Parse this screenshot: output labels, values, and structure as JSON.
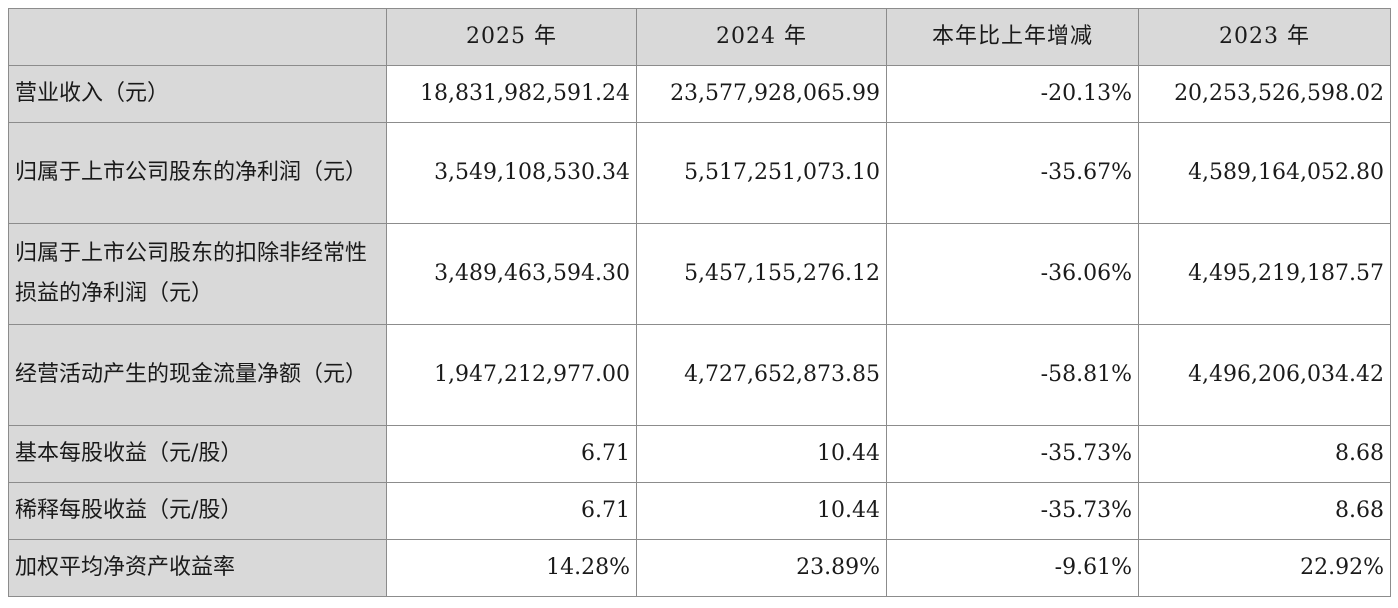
{
  "table": {
    "header": {
      "label": "",
      "columns": [
        "2025 年",
        "2024 年",
        "本年比上年增减",
        "2023 年"
      ]
    },
    "rows": [
      {
        "label": "营业收入（元）",
        "values": [
          "18,831,982,591.24",
          "23,577,928,065.99",
          "-20.13%",
          "20,253,526,598.02"
        ]
      },
      {
        "label": "归属于上市公司股东的净利润（元）",
        "values": [
          "3,549,108,530.34",
          "5,517,251,073.10",
          "-35.67%",
          "4,589,164,052.80"
        ]
      },
      {
        "label": "归属于上市公司股东的扣除非经常性损益的净利润（元）",
        "values": [
          "3,489,463,594.30",
          "5,457,155,276.12",
          "-36.06%",
          "4,495,219,187.57"
        ]
      },
      {
        "label": "经营活动产生的现金流量净额（元）",
        "values": [
          "1,947,212,977.00",
          "4,727,652,873.85",
          "-58.81%",
          "4,496,206,034.42"
        ]
      },
      {
        "label": "基本每股收益（元/股）",
        "values": [
          "6.71",
          "10.44",
          "-35.73%",
          "8.68"
        ]
      },
      {
        "label": "稀释每股收益（元/股）",
        "values": [
          "6.71",
          "10.44",
          "-35.73%",
          "8.68"
        ]
      },
      {
        "label": "加权平均净资产收益率",
        "values": [
          "14.28%",
          "23.89%",
          "-9.61%",
          "22.92%"
        ]
      }
    ]
  }
}
